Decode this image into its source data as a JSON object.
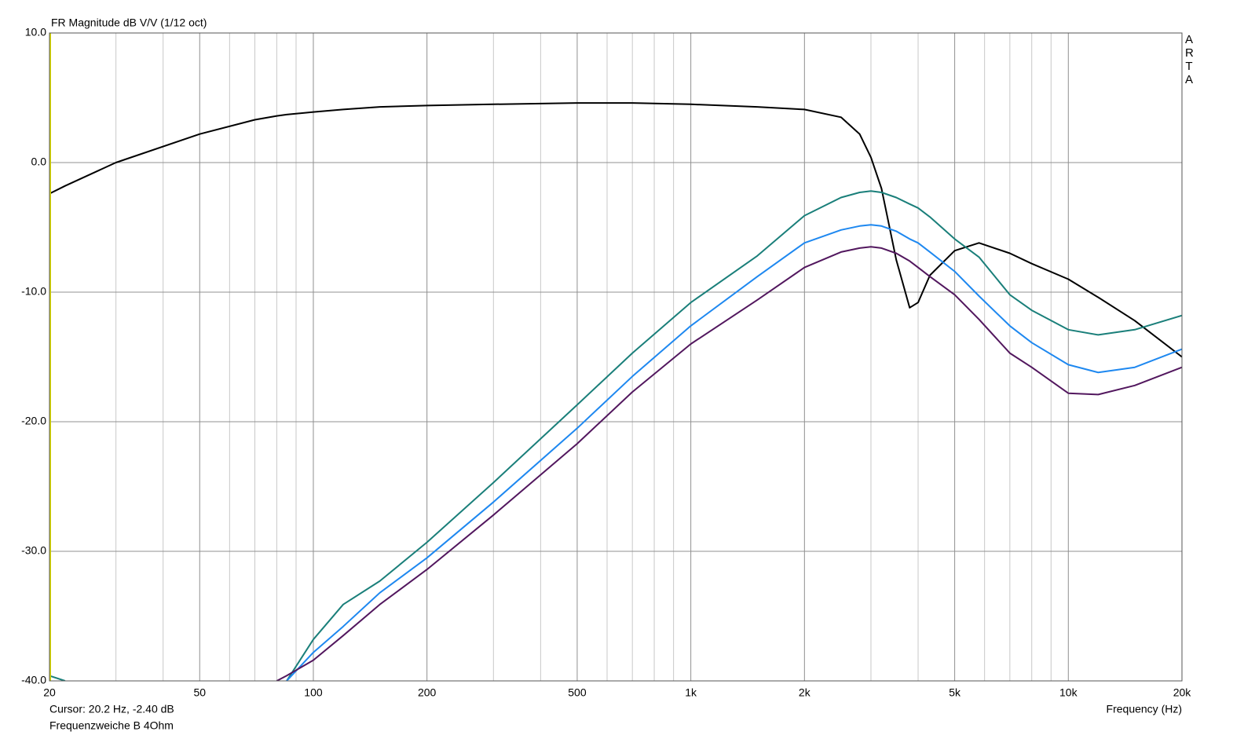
{
  "chart_data": {
    "type": "line",
    "title": "FR Magnitude dB V/V (1/12 oct)",
    "brand": "ARTA",
    "cursor_text": "Cursor: 20.2 Hz, -2.40 dB",
    "caption": "Frequenzweiche B 4Ohm",
    "x_label": "Frequency (Hz)",
    "x_log": true,
    "grid": true,
    "x": [
      20,
      22,
      30,
      50,
      70,
      80,
      85,
      100,
      120,
      150,
      200,
      300,
      500,
      700,
      1000,
      1500,
      2000,
      2500,
      2800,
      3000,
      3200,
      3500,
      3800,
      4000,
      4300,
      5000,
      5800,
      7000,
      8000,
      10000,
      12000,
      15000,
      20000
    ],
    "series": [
      {
        "name": "black",
        "color": "#000000",
        "values": [
          -2.4,
          -1.8,
          0.0,
          2.2,
          3.3,
          3.6,
          3.7,
          3.9,
          4.1,
          4.3,
          4.4,
          4.5,
          4.6,
          4.6,
          4.5,
          4.3,
          4.1,
          3.5,
          2.2,
          0.4,
          -2.0,
          -7.5,
          -11.2,
          -10.8,
          -8.7,
          -6.8,
          -6.2,
          -7.0,
          -7.8,
          -9.0,
          -10.4,
          -12.2,
          -15.0
        ]
      },
      {
        "name": "teal",
        "color": "#1a7f7a",
        "values": [
          -39.6,
          -40.0,
          null,
          null,
          null,
          null,
          -40.0,
          -36.8,
          -34.1,
          -32.3,
          -29.3,
          -24.7,
          -18.7,
          -14.7,
          -10.8,
          -7.2,
          -4.1,
          -2.7,
          -2.3,
          -2.2,
          -2.3,
          -2.7,
          -3.2,
          -3.5,
          -4.2,
          -5.9,
          -7.3,
          -10.2,
          -11.4,
          -12.9,
          -13.3,
          -12.9,
          -11.8
        ]
      },
      {
        "name": "blue",
        "color": "#1e88f0",
        "values": [
          null,
          null,
          null,
          null,
          null,
          null,
          -40.0,
          -37.8,
          -35.8,
          -33.2,
          -30.5,
          -26.2,
          -20.5,
          -16.5,
          -12.6,
          -8.8,
          -6.2,
          -5.2,
          -4.9,
          -4.8,
          -4.9,
          -5.3,
          -5.9,
          -6.2,
          -6.9,
          -8.4,
          -10.3,
          -12.6,
          -13.9,
          -15.6,
          -16.2,
          -15.8,
          -14.4
        ]
      },
      {
        "name": "purple",
        "color": "#52175e",
        "values": [
          null,
          null,
          null,
          null,
          null,
          -40.0,
          -39.6,
          -38.4,
          -36.5,
          -34.1,
          -31.4,
          -27.2,
          -21.7,
          -17.7,
          -14.0,
          -10.6,
          -8.1,
          -6.9,
          -6.6,
          -6.5,
          -6.6,
          -7.0,
          -7.6,
          -8.1,
          -8.8,
          -10.2,
          -12.1,
          -14.7,
          -15.8,
          -17.8,
          -17.9,
          -17.2,
          -15.8
        ]
      }
    ],
    "xlim": [
      20,
      20000
    ],
    "ylim": [
      -40,
      10
    ],
    "xticks": [
      20,
      50,
      100,
      200,
      500,
      {
        "value": 1000,
        "label": "1k"
      },
      {
        "value": 2000,
        "label": "2k"
      },
      {
        "value": 5000,
        "label": "5k"
      },
      {
        "value": 10000,
        "label": "10k"
      },
      {
        "value": 20000,
        "label": "20k"
      }
    ],
    "x_minor_grid": [
      30,
      40,
      60,
      70,
      80,
      90,
      300,
      400,
      600,
      700,
      800,
      900,
      3000,
      4000,
      6000,
      7000,
      8000,
      9000
    ],
    "yticks": [
      {
        "value": 10,
        "label": "10.0"
      },
      {
        "value": 0,
        "label": "0.0"
      },
      {
        "value": -10,
        "label": "-10.0"
      },
      {
        "value": -20,
        "label": "-20.0"
      },
      {
        "value": -30,
        "label": "-30.0"
      },
      {
        "value": -40,
        "label": "-40.0"
      }
    ]
  }
}
